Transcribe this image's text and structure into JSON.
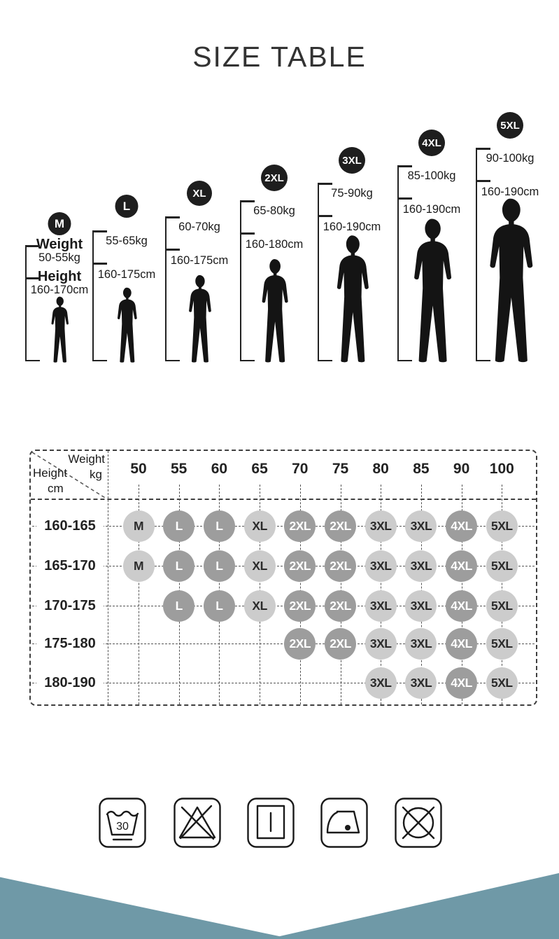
{
  "title": "SIZE TABLE",
  "figures": [
    {
      "size": "M",
      "weight_label": "Weight",
      "weight": "50-55kg",
      "height_label": "Height",
      "height": "160-170cm"
    },
    {
      "size": "L",
      "weight": "55-65kg",
      "height": "160-175cm"
    },
    {
      "size": "XL",
      "weight": "60-70kg",
      "height": "160-175cm"
    },
    {
      "size": "2XL",
      "weight": "65-80kg",
      "height": "160-180cm"
    },
    {
      "size": "3XL",
      "weight": "75-90kg",
      "height": "160-190cm"
    },
    {
      "size": "4XL",
      "weight": "85-100kg",
      "height": "160-190cm"
    },
    {
      "size": "5XL",
      "weight": "90-100kg",
      "height": "160-190cm"
    }
  ],
  "size_matrix": {
    "corner": {
      "col_label": "Weight",
      "col_unit": "kg",
      "row_label": "Height",
      "row_unit": "cm"
    },
    "weight_columns": [
      "50",
      "55",
      "60",
      "65",
      "70",
      "75",
      "80",
      "85",
      "90",
      "100"
    ],
    "rows": [
      {
        "height_range": "160-165",
        "sizes": [
          "M",
          "L",
          "L",
          "XL",
          "2XL",
          "2XL",
          "3XL",
          "3XL",
          "4XL",
          "5XL"
        ]
      },
      {
        "height_range": "165-170",
        "sizes": [
          "M",
          "L",
          "L",
          "XL",
          "2XL",
          "2XL",
          "3XL",
          "3XL",
          "4XL",
          "5XL"
        ]
      },
      {
        "height_range": "170-175",
        "sizes": [
          "",
          "L",
          "L",
          "XL",
          "2XL",
          "2XL",
          "3XL",
          "3XL",
          "4XL",
          "5XL"
        ]
      },
      {
        "height_range": "175-180",
        "sizes": [
          "",
          "",
          "",
          "",
          "2XL",
          "2XL",
          "3XL",
          "3XL",
          "4XL",
          "5XL"
        ]
      },
      {
        "height_range": "180-190",
        "sizes": [
          "",
          "",
          "",
          "",
          "",
          "",
          "3XL",
          "3XL",
          "4XL",
          "5XL"
        ]
      }
    ],
    "dark_sizes": [
      "L",
      "2XL",
      "4XL"
    ]
  },
  "care": {
    "wash_temp": "30",
    "icons": [
      "wash-30-icon",
      "do-not-bleach-icon",
      "drip-dry-icon",
      "iron-one-dot-icon",
      "do-not-tumble-dry-icon"
    ]
  },
  "colors": {
    "silhouette": "#141414",
    "badge": "#1e1e1e",
    "circle_light": "#cccccc",
    "circle_dark": "#9d9d9d",
    "grid_line": "#555555",
    "footer_teal": "#6f99a7",
    "text": "#1a1a1a"
  }
}
